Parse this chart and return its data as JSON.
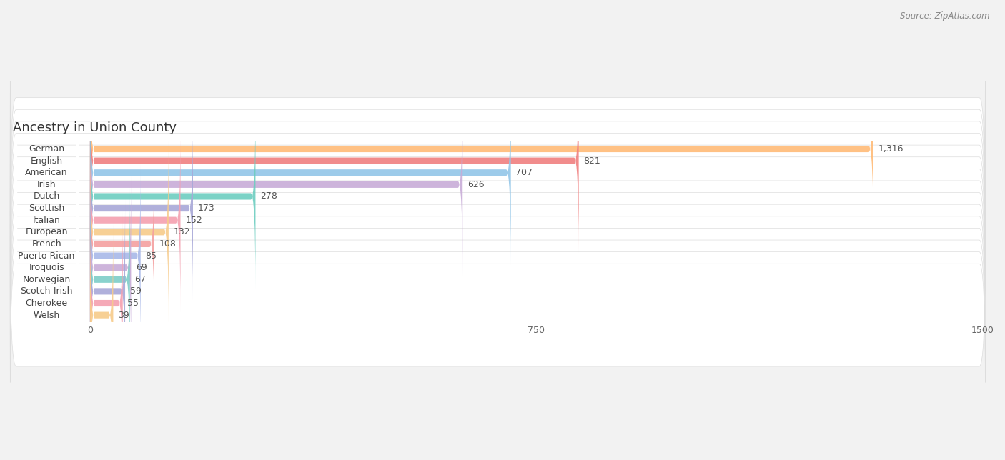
{
  "title": "Ancestry in Union County",
  "source": "Source: ZipAtlas.com",
  "categories": [
    "German",
    "English",
    "American",
    "Irish",
    "Dutch",
    "Scottish",
    "Italian",
    "European",
    "French",
    "Puerto Rican",
    "Iroquois",
    "Norwegian",
    "Scotch-Irish",
    "Cherokee",
    "Welsh"
  ],
  "values": [
    1316,
    821,
    707,
    626,
    278,
    173,
    152,
    132,
    108,
    85,
    69,
    67,
    59,
    55,
    39
  ],
  "bar_colors": [
    "#FFBB77",
    "#F08080",
    "#93C6E8",
    "#C8ACD8",
    "#6DCDC0",
    "#A8A8D8",
    "#F4A0B0",
    "#F7CB8A",
    "#F4A0A0",
    "#A8B8E8",
    "#C8ACD8",
    "#7DCEC8",
    "#A8A8D8",
    "#F4A0B0",
    "#F7CB8A"
  ],
  "xlim_max": 1500,
  "xticks": [
    0,
    750,
    1500
  ],
  "background_color": "#f2f2f2",
  "row_bg_color": "#ffffff",
  "title_fontsize": 13,
  "value_fontsize": 9,
  "label_fontsize": 9
}
